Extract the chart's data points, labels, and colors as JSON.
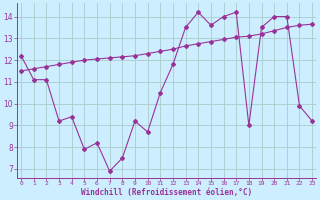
{
  "xlabel": "Windchill (Refroidissement éolien,°C)",
  "bg_color": "#cceeff",
  "line_color": "#993399",
  "grid_color": "#aacccc",
  "x_data": [
    0,
    1,
    2,
    3,
    4,
    5,
    6,
    7,
    8,
    9,
    10,
    11,
    12,
    13,
    14,
    15,
    16,
    17,
    18,
    19,
    20,
    21,
    22,
    23
  ],
  "y1_data": [
    12.2,
    11.1,
    11.1,
    9.2,
    9.4,
    7.9,
    8.2,
    6.9,
    7.5,
    9.2,
    8.7,
    10.5,
    11.8,
    13.5,
    14.2,
    13.6,
    14.0,
    14.2,
    9.0,
    13.5,
    14.0,
    14.0,
    9.9,
    9.2
  ],
  "y2_data": [
    11.5,
    11.6,
    11.7,
    11.8,
    11.9,
    12.0,
    12.05,
    12.1,
    12.15,
    12.2,
    12.3,
    12.4,
    12.5,
    12.65,
    12.75,
    12.85,
    12.95,
    13.05,
    13.1,
    13.2,
    13.35,
    13.5,
    13.6,
    13.65
  ],
  "xlim": [
    -0.3,
    23.3
  ],
  "ylim": [
    6.6,
    14.6
  ],
  "yticks": [
    7,
    8,
    9,
    10,
    11,
    12,
    13,
    14
  ],
  "xticks": [
    0,
    1,
    2,
    3,
    4,
    5,
    6,
    7,
    8,
    9,
    10,
    11,
    12,
    13,
    14,
    15,
    16,
    17,
    18,
    19,
    20,
    21,
    22,
    23
  ]
}
